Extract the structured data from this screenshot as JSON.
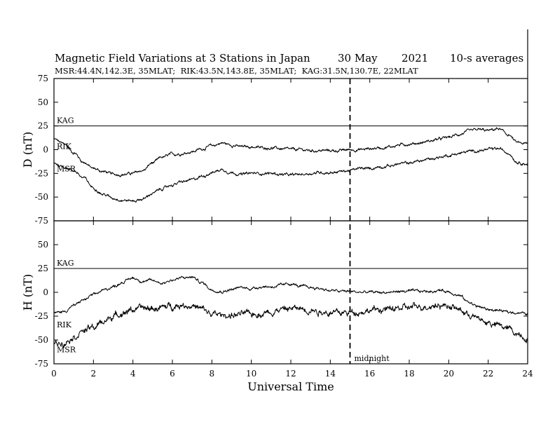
{
  "chart_data": {
    "type": "line",
    "title": {
      "main": "Magnetic Field Variations at 3 Stations in Japan",
      "date": "30 May",
      "year": "2021",
      "averaging": "10-s averages"
    },
    "subtitle": "MSR:44.4N,142.3E, 35MLAT;  RIK:43.5N,143.8E, 35MLAT;  KAG:31.5N,130.7E, 22MLAT",
    "xlabel": "Universal Time",
    "xlim": [
      0,
      24
    ],
    "xticks": [
      "0",
      "2",
      "4",
      "6",
      "8",
      "10",
      "12",
      "14",
      "16",
      "18",
      "20",
      "22",
      "24"
    ],
    "marker": {
      "x": 15,
      "label": "midnight",
      "style": "dashed"
    },
    "panels": [
      {
        "ylabel": "D (nT)",
        "ylim": [
          -75,
          75
        ],
        "yticks": [
          "75",
          "50",
          "25",
          "0",
          "-25",
          "-50",
          "-75"
        ],
        "series": [
          {
            "name": "KAG",
            "x": [
              0,
              24
            ],
            "y": [
              25,
              25
            ]
          },
          {
            "name": "RIK",
            "x": [
              0,
              0.5,
              1,
              1.5,
              2,
              2.5,
              3,
              3.5,
              4,
              4.5,
              5,
              5.5,
              6,
              6.5,
              7,
              7.5,
              8,
              8.5,
              9,
              9.5,
              10,
              10.5,
              11,
              11.5,
              12,
              12.5,
              13,
              13.5,
              14,
              14.5,
              15,
              15.5,
              16,
              16.5,
              17,
              17.5,
              18,
              18.5,
              19,
              19.5,
              20,
              20.5,
              21,
              21.5,
              22,
              22.5,
              23,
              23.5,
              24
            ],
            "y": [
              11,
              6,
              -3,
              -13,
              -20,
              -23,
              -26,
              -26,
              -25,
              -22,
              -14,
              -8,
              -5,
              -4,
              -2,
              1,
              4,
              7,
              5,
              3,
              3,
              2,
              2,
              1,
              0,
              0,
              -1,
              -1,
              -1,
              -1,
              0,
              0,
              1,
              2,
              3,
              5,
              6,
              7,
              9,
              11,
              13,
              16,
              19,
              21,
              20,
              22,
              16,
              7,
              6
            ]
          },
          {
            "name": "MSR",
            "x": [
              0,
              0.5,
              1,
              1.5,
              2,
              2.5,
              3,
              3.5,
              4,
              4.5,
              5,
              5.5,
              6,
              6.5,
              7,
              7.5,
              8,
              8.5,
              9,
              9.5,
              10,
              10.5,
              11,
              11.5,
              12,
              12.5,
              13,
              13.5,
              14,
              14.5,
              15,
              15.5,
              16,
              16.5,
              17,
              17.5,
              18,
              18.5,
              19,
              19.5,
              20,
              20.5,
              21,
              21.5,
              22,
              22.5,
              23,
              23.5,
              24
            ],
            "y": [
              -14,
              -18,
              -22,
              -30,
              -40,
              -47,
              -51,
              -53,
              -54,
              -52,
              -46,
              -41,
              -37,
              -34,
              -32,
              -28,
              -24,
              -21,
              -24,
              -26,
              -25,
              -25,
              -25,
              -26,
              -27,
              -26,
              -25,
              -24,
              -24,
              -23,
              -22,
              -20,
              -20,
              -18,
              -17,
              -15,
              -14,
              -12,
              -10,
              -8,
              -6,
              -4,
              -2,
              -1,
              0,
              1,
              -3,
              -13,
              -15
            ]
          }
        ]
      },
      {
        "ylabel": "H (nT)",
        "ylim": [
          -75,
          75
        ],
        "yticks": [
          "75",
          "50",
          "25",
          "0",
          "-25",
          "-50",
          "-75"
        ],
        "series": [
          {
            "name": "KAG",
            "x": [
              0,
              24
            ],
            "y": [
              25,
              25
            ]
          },
          {
            "name": "RIK",
            "x": [
              0,
              0.5,
              1,
              1.5,
              2,
              2.5,
              3,
              3.5,
              4,
              4.5,
              5,
              5.5,
              6,
              6.5,
              7,
              7.5,
              8,
              8.5,
              9,
              9.5,
              10,
              10.5,
              11,
              11.5,
              12,
              12.5,
              13,
              13.5,
              14,
              14.5,
              15,
              15.5,
              16,
              16.5,
              17,
              17.5,
              18,
              18.5,
              19,
              19.5,
              20,
              20.5,
              21,
              21.5,
              22,
              22.5,
              23,
              23.5,
              24
            ],
            "y": [
              -22,
              -20,
              -14,
              -8,
              -3,
              2,
              6,
              11,
              15,
              12,
              12,
              10,
              13,
              15,
              16,
              10,
              3,
              1,
              3,
              5,
              4,
              6,
              6,
              7,
              9,
              6,
              5,
              4,
              2,
              1,
              1,
              0,
              0,
              0,
              0,
              1,
              1,
              1,
              1,
              2,
              1,
              -3,
              -10,
              -15,
              -18,
              -19,
              -21,
              -21,
              -23
            ]
          },
          {
            "name": "MSR",
            "x": [
              0,
              0.5,
              1,
              1.5,
              2,
              2.5,
              3,
              3.5,
              4,
              4.5,
              5,
              5.5,
              6,
              6.5,
              7,
              7.5,
              8,
              8.5,
              9,
              9.5,
              10,
              10.5,
              11,
              11.5,
              12,
              12.5,
              13,
              13.5,
              14,
              14.5,
              15,
              15.5,
              16,
              16.5,
              17,
              17.5,
              18,
              18.5,
              19,
              19.5,
              20,
              20.5,
              21,
              21.5,
              22,
              22.5,
              23,
              23.5,
              24
            ],
            "y": [
              -54,
              -52,
              -46,
              -40,
              -37,
              -31,
              -25,
              -21,
              -18,
              -17,
              -17,
              -16,
              -14,
              -13,
              -14,
              -18,
              -23,
              -24,
              -24,
              -23,
              -23,
              -22,
              -20,
              -18,
              -17,
              -17,
              -18,
              -20,
              -21,
              -22,
              -21,
              -20,
              -19,
              -18,
              -18,
              -17,
              -16,
              -15,
              -14,
              -13,
              -14,
              -18,
              -23,
              -28,
              -32,
              -35,
              -38,
              -43,
              -48
            ]
          }
        ]
      }
    ]
  }
}
